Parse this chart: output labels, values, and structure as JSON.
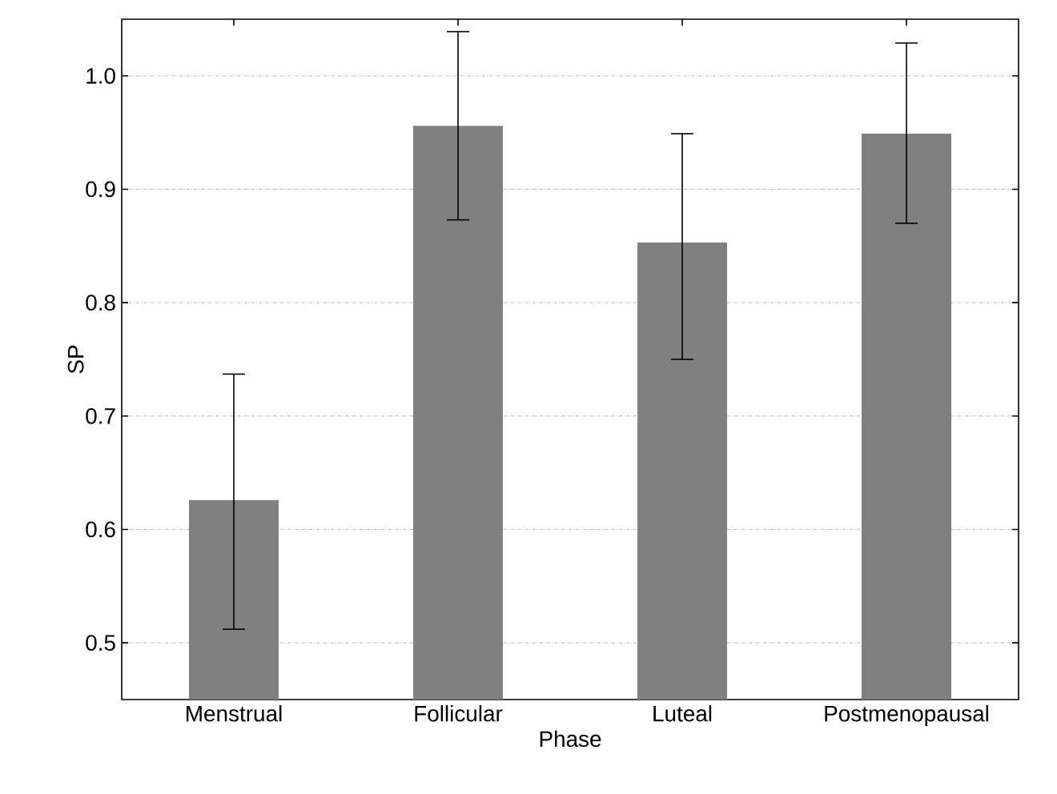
{
  "chart_data": {
    "type": "bar",
    "xlabel": "Phase",
    "ylabel": "SP",
    "categories": [
      "Menstrual",
      "Follicular",
      "Luteal",
      "Postmenopausal"
    ],
    "values": [
      0.626,
      0.956,
      0.853,
      0.949
    ],
    "errors": [
      [
        0.512,
        0.737
      ],
      [
        0.873,
        1.039
      ],
      [
        0.75,
        0.949
      ],
      [
        0.87,
        1.029
      ]
    ],
    "color": "#808080",
    "ylim": [
      0.45,
      1.05
    ],
    "yticks": [
      0.5,
      0.6,
      0.7,
      0.8,
      0.9,
      {
        "value": 1,
        "label": "1.0"
      }
    ],
    "grid": "y"
  }
}
